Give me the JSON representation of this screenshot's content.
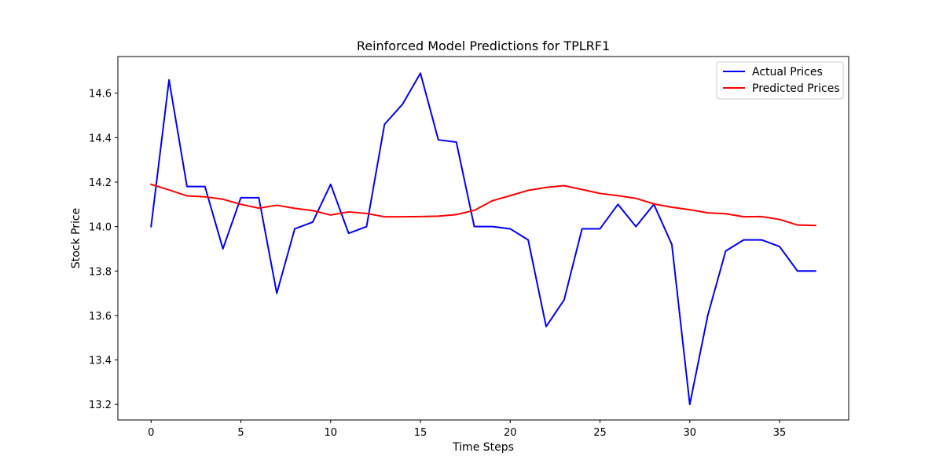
{
  "chart_data": {
    "type": "line",
    "title": "Reinforced Model Predictions for TPLRF1",
    "xlabel": "Time Steps",
    "ylabel": "Stock Price",
    "xlim": [
      -1.85,
      38.85
    ],
    "ylim": [
      13.13,
      14.765
    ],
    "xticks": [
      0,
      5,
      10,
      15,
      20,
      25,
      30,
      35
    ],
    "yticks": [
      13.2,
      13.4,
      13.6,
      13.8,
      14.0,
      14.2,
      14.4,
      14.6
    ],
    "ytick_labels": [
      "13.2",
      "13.4",
      "13.6",
      "13.8",
      "14.0",
      "14.2",
      "14.4",
      "14.6"
    ],
    "grid": false,
    "legend_position": "top-right",
    "x": [
      0,
      1,
      2,
      3,
      4,
      5,
      6,
      7,
      8,
      9,
      10,
      11,
      12,
      13,
      14,
      15,
      16,
      17,
      18,
      19,
      20,
      21,
      22,
      23,
      24,
      25,
      26,
      27,
      28,
      29,
      30,
      31,
      32,
      33,
      34,
      35,
      36,
      37
    ],
    "series": [
      {
        "name": "Actual Prices",
        "color": "#0000ff",
        "values": [
          14.0,
          14.66,
          14.18,
          14.18,
          13.9,
          14.13,
          14.13,
          13.7,
          13.99,
          14.02,
          14.19,
          13.97,
          14.0,
          14.46,
          14.55,
          14.69,
          14.39,
          14.38,
          14.0,
          14.0,
          13.99,
          13.94,
          13.55,
          13.67,
          13.99,
          13.99,
          14.1,
          14.0,
          14.1,
          13.92,
          13.2,
          13.6,
          13.89,
          13.94,
          13.94,
          13.91,
          13.8,
          13.8
        ]
      },
      {
        "name": "Predicted Prices",
        "color": "#ff0000",
        "values": [
          14.19,
          14.165,
          14.138,
          14.134,
          14.123,
          14.1,
          14.083,
          14.096,
          14.082,
          14.072,
          14.052,
          14.066,
          14.059,
          14.044,
          14.044,
          14.045,
          14.047,
          14.054,
          14.073,
          14.116,
          14.139,
          14.163,
          14.176,
          14.184,
          14.167,
          14.149,
          14.139,
          14.127,
          14.102,
          14.087,
          14.076,
          14.062,
          14.058,
          14.044,
          14.045,
          14.032,
          14.007,
          14.005
        ]
      }
    ]
  }
}
